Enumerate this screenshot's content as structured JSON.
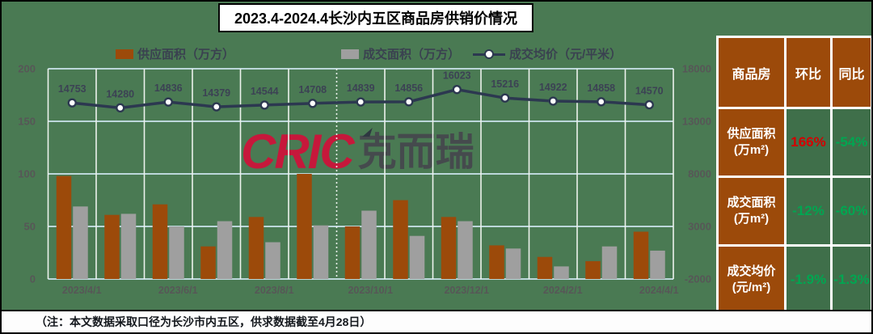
{
  "title": "2023.4-2024.4长沙内五区商品房供销价情况",
  "note": "（注：本文数据采取口径为长沙市内五区，供求数据截至4月28日）",
  "watermark": {
    "latin": "CRIC",
    "cjk": "克而瑞"
  },
  "colors": {
    "background": "#4a7a53",
    "table_cell_green": "#3f6f4a",
    "brown": "#9c4a0a",
    "bar_gray": "#9f9f9f",
    "line_navy": "#2c3850",
    "grid_cyan": "#bcd7da",
    "grid_white": "#edf2ed",
    "tick_gray": "#575757",
    "label_navy": "#3c4254",
    "positive_red": "#d40000",
    "negative_green": "#00a651"
  },
  "chart_data": {
    "type": "combo",
    "n_months": 13,
    "x_ticklabels": [
      "2023/4/1",
      "2023/6/1",
      "2023/8/1",
      "2023/10/1",
      "2023/12/1",
      "2024/2/1",
      "2024/4/1"
    ],
    "x_tick_month_indices": [
      0,
      2,
      4,
      6,
      8,
      10,
      12
    ],
    "left_axis": {
      "ticks": [
        0,
        50,
        100,
        150,
        200
      ],
      "range": [
        0,
        200
      ]
    },
    "right_axis": {
      "ticks": [
        -2000,
        3000,
        8000,
        13000,
        18000
      ],
      "range": [
        -2000,
        18000
      ]
    },
    "grid": true,
    "dashed_boundary_index": 6,
    "legend_position": "top",
    "series": [
      {
        "name": "供应面积（万方）",
        "type": "bar",
        "axis": "left",
        "color": "#9c4a0a",
        "values": [
          98,
          61,
          71,
          31,
          59,
          100,
          50,
          75,
          59,
          32,
          21,
          17,
          45
        ]
      },
      {
        "name": "成交面积（万方）",
        "type": "bar",
        "axis": "left",
        "color": "#9f9f9f",
        "values": [
          69,
          62,
          50,
          55,
          35,
          51,
          65,
          41,
          55,
          29,
          12,
          31,
          27
        ]
      },
      {
        "name": "成交均价（元/平米）",
        "type": "line",
        "axis": "right",
        "color": "#2c3850",
        "values": [
          14753,
          14280,
          14836,
          14379,
          14544,
          14708,
          14839,
          14856,
          16023,
          15216,
          14922,
          14858,
          14570
        ],
        "data_labels": [
          "14753",
          "14280",
          "14836",
          "14379",
          "14544",
          "14708",
          "14839",
          "14856",
          "16023",
          "15216",
          "14922",
          "14858",
          "14570"
        ]
      }
    ]
  },
  "table": {
    "headers": [
      "商品房",
      "环比",
      "同比"
    ],
    "rows": [
      {
        "name": "供应面积",
        "unit": "(万m²)",
        "mom": "166%",
        "mom_color": "#d40000",
        "yoy": "-54%",
        "yoy_color": "#00a651"
      },
      {
        "name": "成交面积",
        "unit": "(万m²)",
        "mom": "-12%",
        "mom_color": "#00a651",
        "yoy": "-60%",
        "yoy_color": "#00a651"
      },
      {
        "name": "成交均价",
        "unit": "(元/m²)",
        "mom": "-1.9%",
        "mom_color": "#00a651",
        "yoy": "-1.3%",
        "yoy_color": "#00a651"
      }
    ]
  }
}
